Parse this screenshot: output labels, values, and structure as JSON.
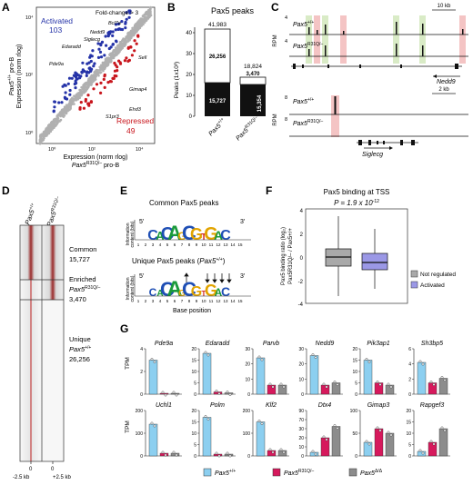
{
  "panelA": {
    "label": "A",
    "fold_change": "Fold-change > 3",
    "activated_label": "Activated",
    "activated_count": "103",
    "repressed_label": "Repressed",
    "repressed_count": "49",
    "ylabel_gene": "Pax5",
    "ylabel_sup": "+/+",
    "ylabel_suffix": " pro-B",
    "ylabel_line2": "Expression (norm rlog)",
    "xlabel_line1": "Expression (norm rlog)",
    "xlabel_gene": "Pax5",
    "xlabel_sup": "R31Q/–",
    "xlabel_suffix": " pro-B",
    "ticks": [
      "10⁰",
      "10²",
      "10⁴"
    ],
    "genes": [
      "Bcl7a",
      "Nedd9",
      "Siglecg",
      "Edaradd",
      "Sell",
      "Pde9a",
      "Gimap4",
      "Ehd3",
      "S1pr3"
    ],
    "colors": {
      "activated": "#2533a8",
      "repressed": "#c8161d",
      "unchanged": "#b0b0b0"
    }
  },
  "panelB": {
    "label": "B",
    "title": "Pax5 peaks",
    "ylabel": "Peaks (1x10³)",
    "bar1_total": "41,983",
    "bar1_top": "26,256",
    "bar1_bottom": "15,727",
    "bar2_total": "18,824",
    "bar2_top": "3,470",
    "bar2_bottom": "15,354",
    "yticks": [
      "0",
      "10",
      "20",
      "30",
      "40"
    ],
    "xlabel1_gene": "Pax5",
    "xlabel1_sup": "+/+",
    "xlabel2_gene": "Pax5",
    "xlabel2_sup": "R31Q/–"
  },
  "panelC": {
    "label": "C",
    "scale1": "10 kb",
    "scale2": "2 kb",
    "rpm": "RPM",
    "val1": "4",
    "val2": "4",
    "val3": "8",
    "val4": "8",
    "track_wt": "Pax5",
    "track_wt_sup": "+/+",
    "track_mut": "Pax5",
    "track_mut_sup": "R31Q/–",
    "gene1": "Nedd9",
    "gene2": "Siglecg"
  },
  "panelD": {
    "label": "D",
    "col1_gene": "Pax5",
    "col1_sup": "+/+",
    "col2_gene": "Pax5",
    "col2_sup": "R31Q/–",
    "common_label": "Common",
    "common_count": "15,727",
    "enriched_label": "Enriched",
    "enriched_gene": "Pax5",
    "enriched_sup": "R31Q/–",
    "enriched_count": "3,470",
    "unique_label": "Unique",
    "unique_gene": "Pax5",
    "unique_sup": "+/+",
    "unique_count": "26,256",
    "tick_left": "-2.5 kb",
    "tick_center": "0",
    "tick_right": "+2.5 kb"
  },
  "panelE": {
    "label": "E",
    "title1": "Common Pax5 peaks",
    "title2": "Unique Pax5 peaks (",
    "title2_gene": "Pax5",
    "title2_sup": "+/+",
    "title2_end": ")",
    "ylabel1": "Information",
    "ylabel2": "content (bits)",
    "xlabel": "Base position",
    "five": "5′",
    "three": "3′",
    "positions": [
      "1",
      "2",
      "3",
      "4",
      "5",
      "6",
      "7",
      "8",
      "9",
      "10",
      "11",
      "12",
      "13",
      "14",
      "15"
    ],
    "motif1": [
      "C",
      "A",
      "C",
      "A",
      "G",
      "C",
      "G",
      "T",
      "G",
      "A",
      "C"
    ],
    "motif2": [
      "C",
      "A",
      "C",
      "A",
      "G",
      "C",
      "G",
      "T",
      "G",
      "A",
      "C"
    ]
  },
  "panelF": {
    "label": "F",
    "title": "Pax5 binding at TSS",
    "pvalue_prefix": "P = 1.9 x 10",
    "pvalue_exp": "-12",
    "ylabel": "Pax5 binding ratio (log₂)",
    "ylabel2": "Pax5R31Q/– / Pax5+/+",
    "yticks": [
      "4",
      "2",
      "0",
      "-2",
      "-4"
    ],
    "legend": [
      "Not regulated",
      "Activated"
    ],
    "colors": {
      "not_regulated": "#a9a9a9",
      "activated": "#9b98e6"
    }
  },
  "panelG": {
    "label": "G",
    "ylabel": "TPM",
    "genes_row1": [
      "Pde9a",
      "Edaradd",
      "Parvb",
      "Nedd9",
      "Pik3ap1",
      "Sh3bp5"
    ],
    "genes_row2": [
      "Uchl1",
      "Polm",
      "Klf2",
      "Dtx4",
      "Gimap3",
      "Rapgef3"
    ],
    "row1_ticks": [
      [
        "0",
        "2",
        "4"
      ],
      [
        "0",
        "5",
        "10",
        "15",
        "20"
      ],
      [
        "0",
        "10",
        "20",
        "30"
      ],
      [
        "0",
        "10",
        "20",
        "30"
      ],
      [
        "0",
        "5",
        "10",
        "15",
        "20"
      ],
      [
        "0",
        "2",
        "4",
        "6"
      ]
    ],
    "row2_ticks": [
      [
        "0",
        "100",
        "200"
      ],
      [
        "0",
        "5",
        "10",
        "15",
        "20"
      ],
      [
        "0",
        "100",
        "200"
      ],
      [
        "0",
        "10",
        "20",
        "30",
        "70",
        "90"
      ],
      [
        "0",
        "50",
        "100"
      ],
      [
        "0",
        "5",
        "10",
        "15",
        "20"
      ]
    ],
    "legend": [
      {
        "gene": "Pax5",
        "sup": "+/+",
        "color": "#8ccff0"
      },
      {
        "gene": "Pax5",
        "sup": "R31Q/–",
        "color": "#d6195c"
      },
      {
        "gene": "Pax5",
        "sup": "Δ/Δ",
        "color": "#8c8c8c"
      }
    ]
  }
}
